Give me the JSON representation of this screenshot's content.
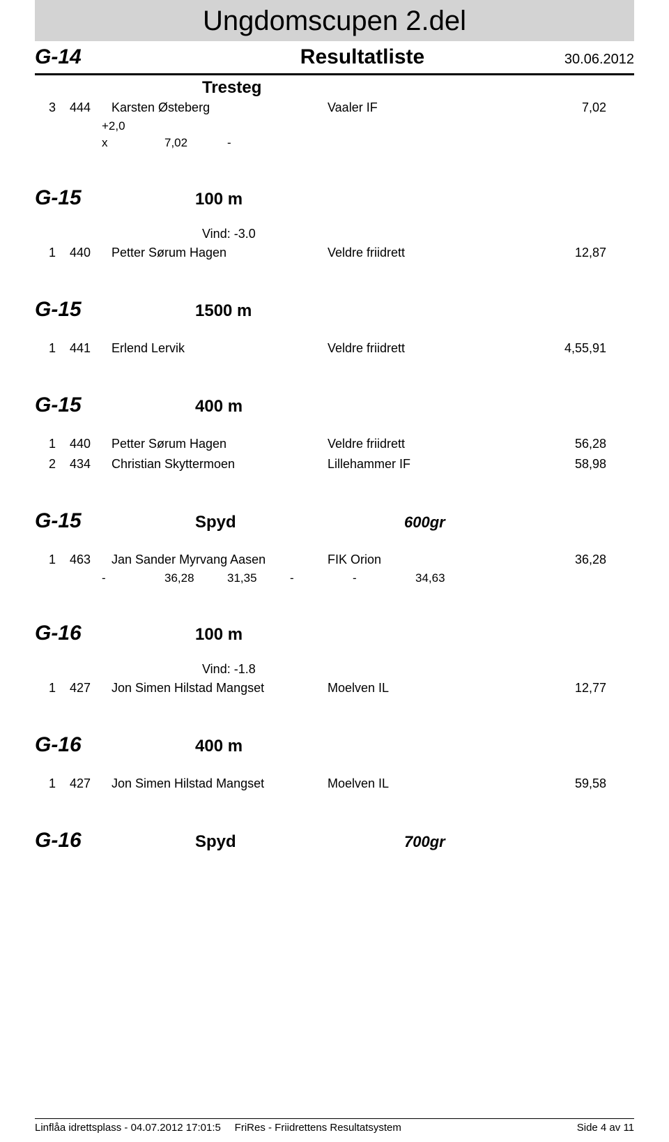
{
  "header": {
    "main_title": "Ungdomscupen 2.del",
    "subtitle": "Resultatliste",
    "date": "30.06.2012",
    "category": "G-14",
    "event": "Tresteg"
  },
  "sections": [
    {
      "type": "results_with_attempts",
      "rows": [
        {
          "place": "3",
          "bib": "444",
          "name": "Karsten Østeberg",
          "club": "Vaaler IF",
          "result": "7,02",
          "wind_line": "+2,0",
          "attempts": [
            "x",
            "7,02",
            "-"
          ]
        }
      ]
    },
    {
      "type": "header",
      "category": "G-15",
      "event": "100 m"
    },
    {
      "type": "wind",
      "wind": "Vind: -3.0"
    },
    {
      "type": "result",
      "place": "1",
      "bib": "440",
      "name": "Petter Sørum Hagen",
      "club": "Veldre friidrett",
      "result": "12,87"
    },
    {
      "type": "header",
      "category": "G-15",
      "event": "1500 m"
    },
    {
      "type": "result",
      "place": "1",
      "bib": "441",
      "name": "Erlend Lervik",
      "club": "Veldre friidrett",
      "result": "4,55,91"
    },
    {
      "type": "header",
      "category": "G-15",
      "event": "400 m"
    },
    {
      "type": "result",
      "place": "1",
      "bib": "440",
      "name": "Petter Sørum Hagen",
      "club": "Veldre friidrett",
      "result": "56,28"
    },
    {
      "type": "result",
      "place": "2",
      "bib": "434",
      "name": "Christian Skyttermoen",
      "club": "Lillehammer IF",
      "result": "58,98"
    },
    {
      "type": "header",
      "category": "G-15",
      "event": "Spyd",
      "extra": "600gr"
    },
    {
      "type": "results_with_attempts",
      "rows": [
        {
          "place": "1",
          "bib": "463",
          "name": "Jan Sander Myrvang Aasen",
          "club": "FIK Orion",
          "result": "36,28",
          "attempts": [
            "-",
            "36,28",
            "31,35",
            "-",
            "-",
            "34,63"
          ]
        }
      ]
    },
    {
      "type": "header",
      "category": "G-16",
      "event": "100 m"
    },
    {
      "type": "wind",
      "wind": "Vind: -1.8"
    },
    {
      "type": "result",
      "place": "1",
      "bib": "427",
      "name": "Jon Simen Hilstad Mangset",
      "club": "Moelven IL",
      "result": "12,77"
    },
    {
      "type": "header",
      "category": "G-16",
      "event": "400 m"
    },
    {
      "type": "result",
      "place": "1",
      "bib": "427",
      "name": "Jon Simen Hilstad Mangset",
      "club": "Moelven IL",
      "result": "59,58"
    },
    {
      "type": "header",
      "category": "G-16",
      "event": "Spyd",
      "extra": "700gr"
    }
  ],
  "footer": {
    "left": "Linflåa idrettsplass - 04.07.2012 17:01:5",
    "center": "FriRes - Friidrettens Resultatsystem",
    "right": "Side 4 av 11"
  }
}
